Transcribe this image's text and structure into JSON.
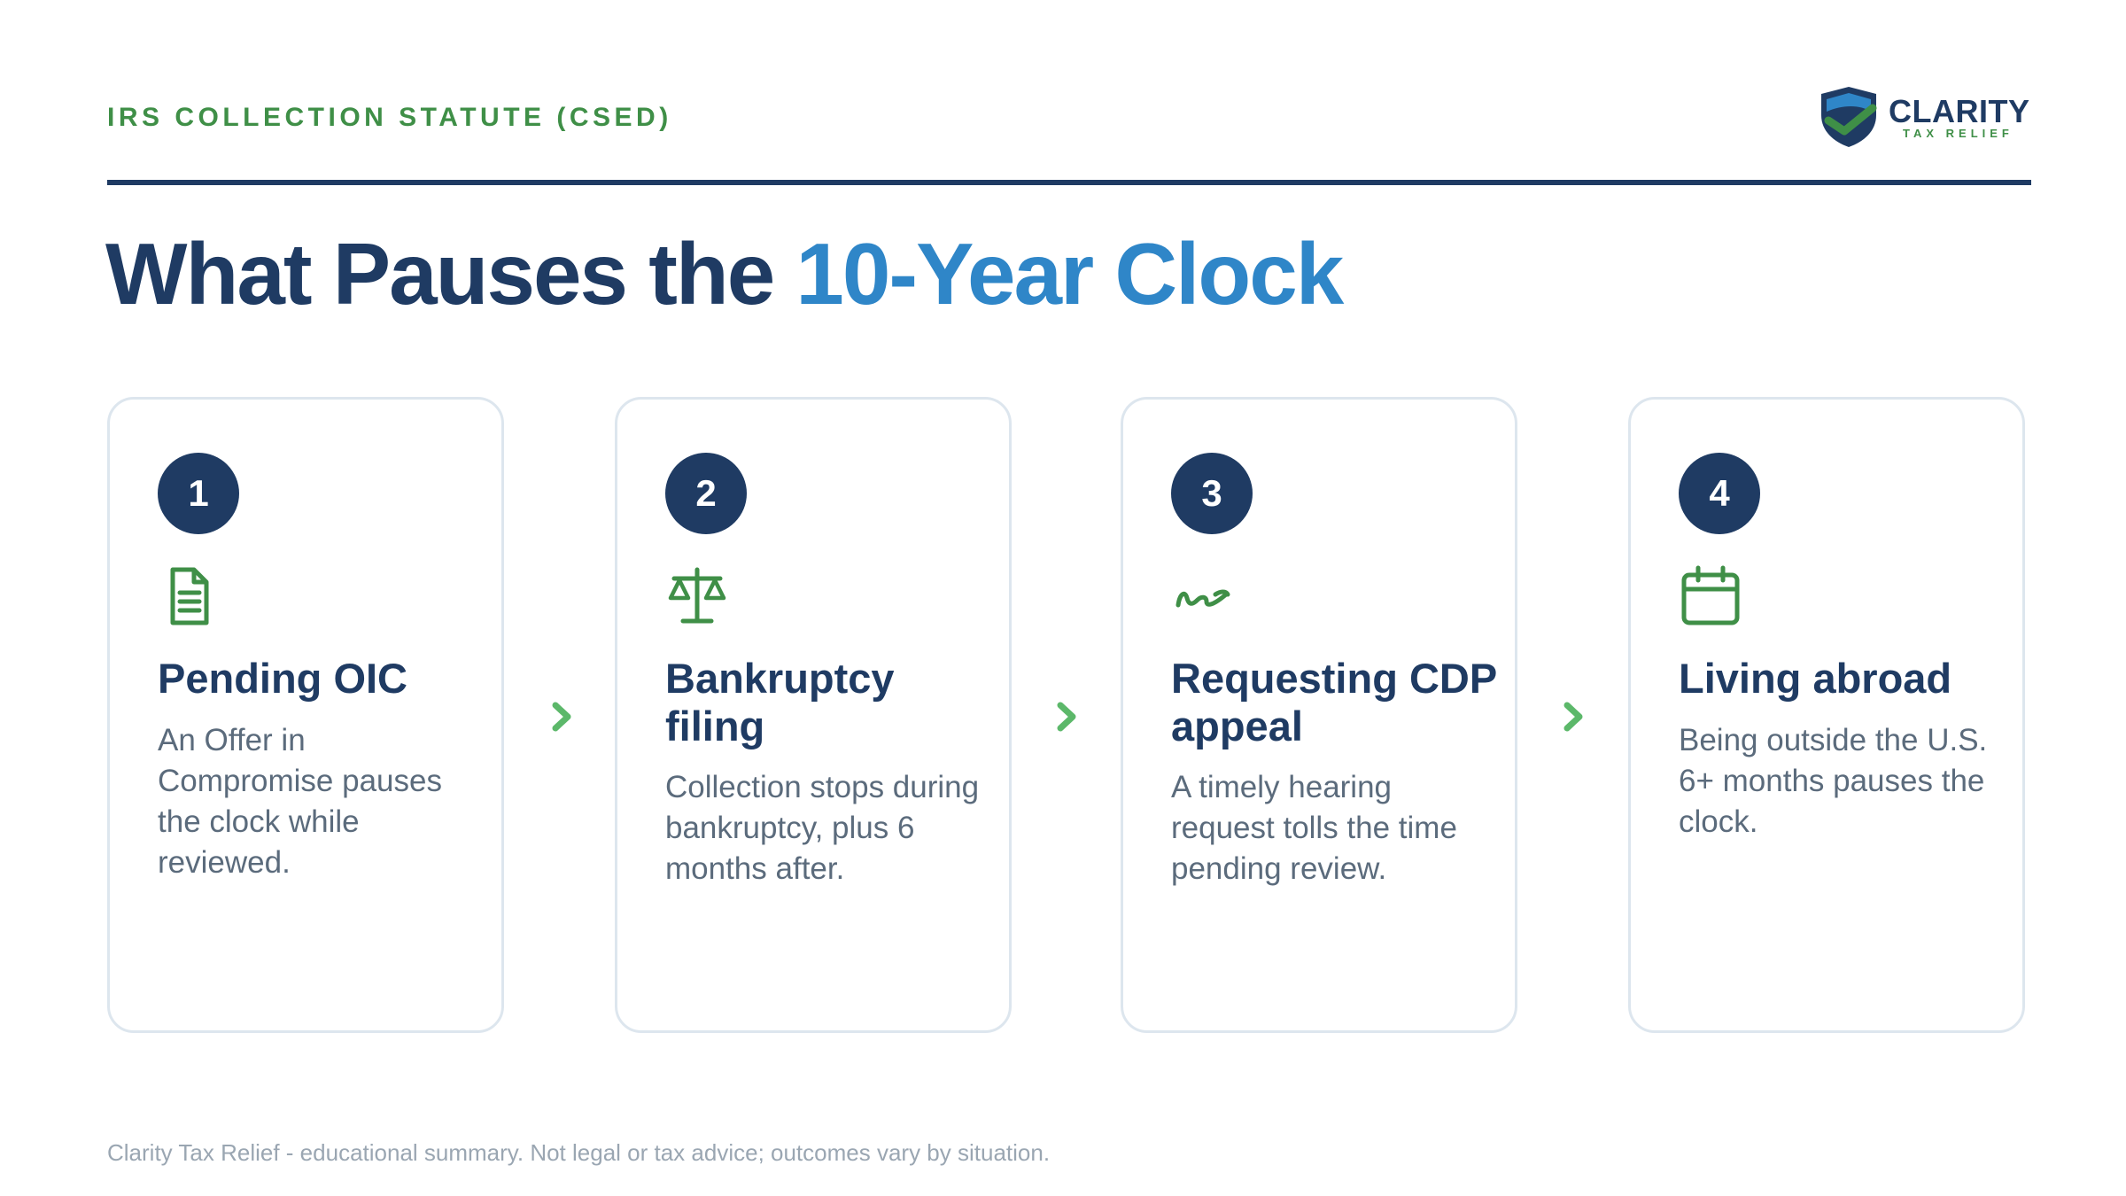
{
  "header": {
    "eyebrow": "IRS COLLECTION STATUTE (CSED)",
    "logo": {
      "name": "CLARITY",
      "tagline": "TAX RELIEF",
      "icon": "shield-check-icon"
    }
  },
  "title": {
    "main": "What Pauses the ",
    "accent": "10-Year Clock"
  },
  "cards": [
    {
      "number": "1",
      "icon": "document-icon",
      "title": "Pending OIC",
      "body": "An Offer in Compromise pauses the clock while reviewed."
    },
    {
      "number": "2",
      "icon": "scale-icon",
      "title": "Bankruptcy filing",
      "body": "Collection stops during bankruptcy, plus 6 months after."
    },
    {
      "number": "3",
      "icon": "signature-icon",
      "title": "Requesting CDP appeal",
      "body": "A timely hearing request tolls the time pending review."
    },
    {
      "number": "4",
      "icon": "calendar-icon",
      "title": "Living abroad",
      "body": "Being outside the U.S. 6+ months pauses the clock."
    }
  ],
  "footer": "Clarity Tax Relief - educational summary. Not legal or tax advice; outcomes vary by situation.",
  "colors": {
    "navy": "#1f3b63",
    "blue_accent": "#2f86c8",
    "green": "#3f8f47",
    "arrow_green": "#5cb86a",
    "card_border": "#dde6ee",
    "body_text": "#5b6b7c",
    "footer_text": "#9aa6b2"
  }
}
